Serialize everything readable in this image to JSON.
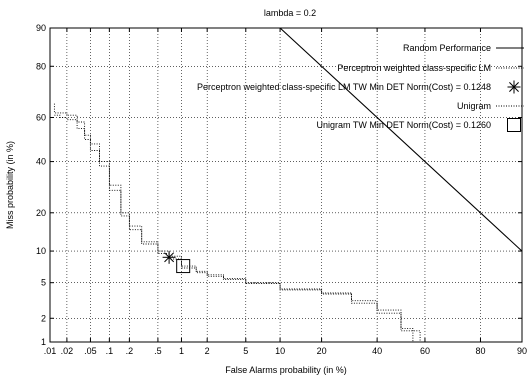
{
  "chart_data": {
    "type": "line",
    "title": "lambda = 0.2",
    "xlabel": "False Alarms probability (in %)",
    "ylabel": "Miss probability (in %)",
    "xlim": [
      0.01,
      90
    ],
    "ylim": [
      1,
      90
    ],
    "scale": "normal-deviate",
    "x_ticks": [
      ".01",
      ".02",
      ".05",
      ".1",
      ".2",
      ".5",
      "1",
      "2",
      "5",
      "10",
      "20",
      "40",
      "60",
      "80",
      "90"
    ],
    "x_tick_values": [
      0.01,
      0.02,
      0.05,
      0.1,
      0.2,
      0.5,
      1,
      2,
      5,
      10,
      20,
      40,
      60,
      80,
      90
    ],
    "y_ticks": [
      "1",
      "2",
      "5",
      "10",
      "20",
      "40",
      "60",
      "80",
      "90"
    ],
    "y_tick_values": [
      1,
      2,
      5,
      10,
      20,
      40,
      60,
      80,
      90
    ],
    "grid": true,
    "legend_position": "top-right",
    "series": [
      {
        "name": "Random Performance",
        "style": "solid",
        "x": [
          10,
          90
        ],
        "y": [
          90,
          10
        ]
      },
      {
        "name": "Perceptron weighted class-specific LM",
        "style": "dotted",
        "x": [
          0.012,
          0.012,
          0.02,
          0.03,
          0.04,
          0.05,
          0.07,
          0.1,
          0.15,
          0.2,
          0.3,
          0.5,
          0.7,
          1,
          1.5,
          2,
          3,
          5,
          10,
          20,
          30,
          40,
          50,
          55
        ],
        "y": [
          66,
          62,
          61,
          58,
          52,
          48,
          40,
          30,
          20,
          16,
          12,
          10,
          9,
          7.3,
          6.5,
          6,
          5.5,
          5,
          4.3,
          3.9,
          3.2,
          2.5,
          1.5,
          1
        ]
      },
      {
        "name": "Unigram",
        "style": "dotted",
        "x": [
          0.012,
          0.015,
          0.02,
          0.03,
          0.04,
          0.05,
          0.07,
          0.1,
          0.15,
          0.2,
          0.3,
          0.5,
          0.7,
          1,
          1.5,
          2,
          3,
          5,
          10,
          20,
          30,
          40,
          50,
          58
        ],
        "y": [
          61,
          60,
          59,
          55,
          50,
          45,
          38,
          28,
          19,
          15,
          11.5,
          9.5,
          8.5,
          7,
          6.3,
          5.8,
          5.4,
          4.9,
          4.2,
          3.8,
          3.0,
          2.3,
          1.4,
          1
        ]
      }
    ],
    "points": [
      {
        "name": "Perceptron weighted class-specific LM TW Min DET Norm(Cost) = 0.1248",
        "marker": "asterisk",
        "x": 0.7,
        "y": 8.8
      },
      {
        "name": "Unigram TW Min DET Norm(Cost) = 0.1260",
        "marker": "square",
        "x": 1.05,
        "y": 7.3
      }
    ]
  }
}
